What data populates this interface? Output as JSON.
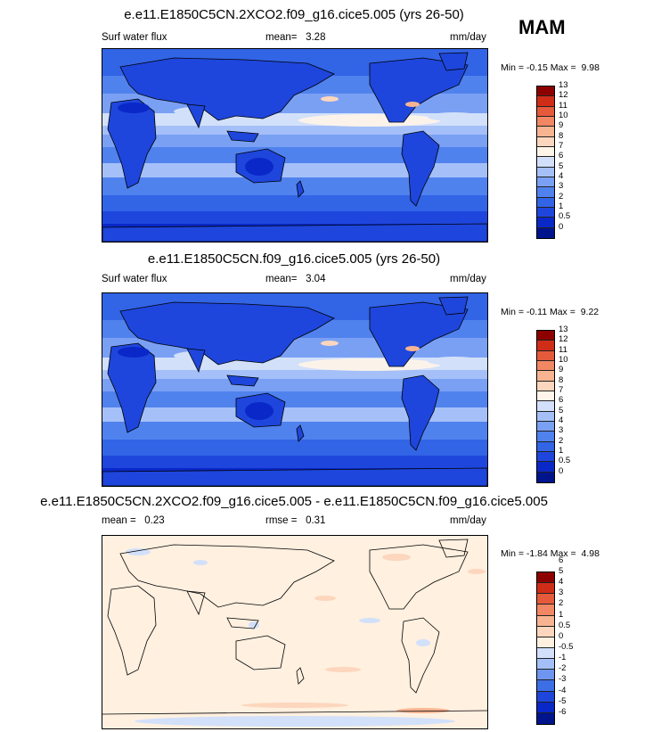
{
  "season": "MAM",
  "colors": {
    "abs_scale": [
      "#00148c",
      "#0a28c8",
      "#1e46dc",
      "#3264e6",
      "#5082ee",
      "#7aa0f4",
      "#a5c0f8",
      "#d2e0fa",
      "#fff5e8",
      "#fcd6bd",
      "#f8b491",
      "#f28764",
      "#e65a3c",
      "#d02d18",
      "#8c0000"
    ],
    "diff_scale": [
      "#00148c",
      "#0a28c8",
      "#1e46dc",
      "#3c6ee6",
      "#6e96f0",
      "#a5c0f8",
      "#d2e0fa",
      "#fff0e0",
      "#fcd6bd",
      "#f8b491",
      "#f28764",
      "#e65a3c",
      "#d02d18",
      "#8c0000"
    ],
    "land_outline": "#000000"
  },
  "panels": [
    {
      "title": "e.e11.E1850C5CN.2XCO2.f09_g16.cice5.005 (yrs 26-50)",
      "left_label": "Surf water flux",
      "mid_label": "mean=",
      "mid_value": "3.28",
      "right_label": "mm/day",
      "min_label": "Min =",
      "min_value": "-0.15",
      "max_label": "Max =",
      "max_value": "9.98"
    },
    {
      "title": "e.e11.E1850C5CN.f09_g16.cice5.005 (yrs 26-50)",
      "left_label": "Surf water flux",
      "mid_label": "mean=",
      "mid_value": "3.04",
      "right_label": "mm/day",
      "min_label": "Min =",
      "min_value": "-0.11",
      "max_label": "Max =",
      "max_value": "9.22"
    },
    {
      "title": "e.e11.E1850C5CN.2XCO2.f09_g16.cice5.005 - e.e11.E1850C5CN.f09_g16.cice5.005",
      "left_label": "mean =",
      "left_value": "0.23",
      "mid_label": "rmse =",
      "mid_value": "0.31",
      "right_label": "mm/day",
      "min_label": "Min =",
      "min_value": "-1.84",
      "max_label": "Max =",
      "max_value": "4.98"
    }
  ],
  "chart_data": [
    {
      "type": "heatmap",
      "title": "e.e11.E1850C5CN.2XCO2.f09_g16.cice5.005 (yrs 26-50)",
      "variable": "Surf water flux",
      "units": "mm/day",
      "season": "MAM",
      "mean": 3.28,
      "min": -0.15,
      "max": 9.98,
      "colorbar_levels": [
        "0",
        "0.5",
        "1",
        "2",
        "3",
        "4",
        "5",
        "6",
        "7",
        "8",
        "9",
        "10",
        "11",
        "12",
        "13"
      ]
    },
    {
      "type": "heatmap",
      "title": "e.e11.E1850C5CN.f09_g16.cice5.005 (yrs 26-50)",
      "variable": "Surf water flux",
      "units": "mm/day",
      "season": "MAM",
      "mean": 3.04,
      "min": -0.11,
      "max": 9.22,
      "colorbar_levels": [
        "0",
        "0.5",
        "1",
        "2",
        "3",
        "4",
        "5",
        "6",
        "7",
        "8",
        "9",
        "10",
        "11",
        "12",
        "13"
      ]
    },
    {
      "type": "heatmap",
      "title": "e.e11.E1850C5CN.2XCO2.f09_g16.cice5.005 - e.e11.E1850C5CN.f09_g16.cice5.005",
      "units": "mm/day",
      "season": "MAM",
      "mean": 0.23,
      "rmse": 0.31,
      "min": -1.84,
      "max": 4.98,
      "colorbar_levels": [
        "-6",
        "-5",
        "-4",
        "-3",
        "-2",
        "-1",
        "-0.5",
        "0",
        "0.5",
        "1",
        "2",
        "3",
        "4",
        "5",
        "6"
      ]
    }
  ]
}
